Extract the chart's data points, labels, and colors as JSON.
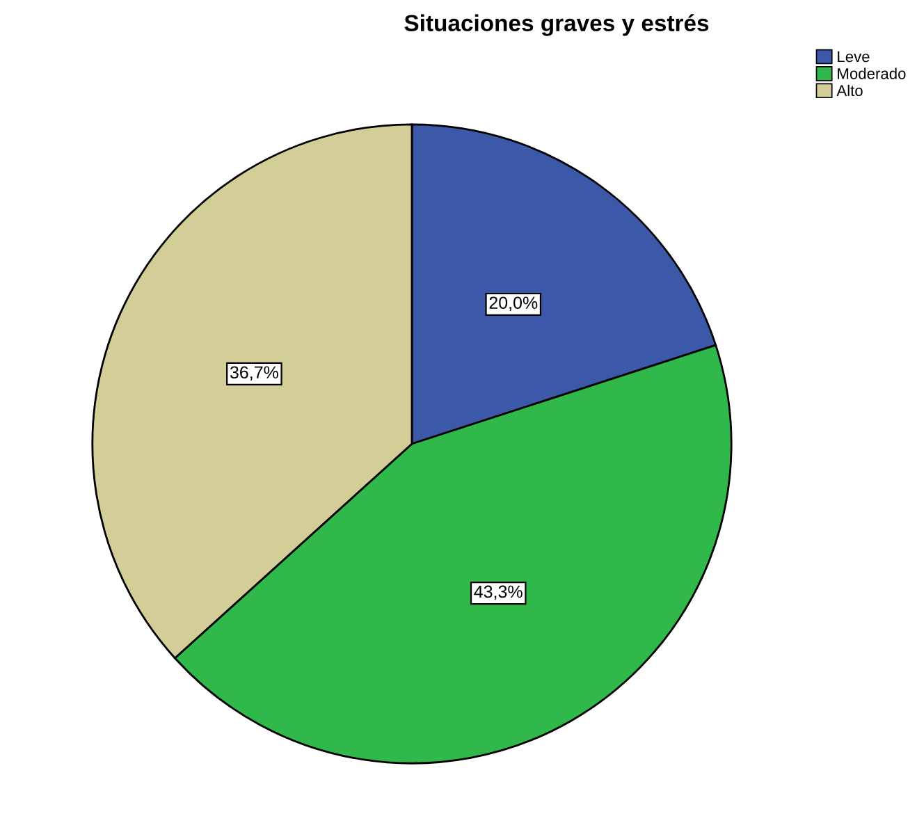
{
  "chart_data": {
    "type": "pie",
    "title": "Situaciones graves y estrés",
    "categories": [
      "Leve",
      "Moderado",
      "Alto"
    ],
    "values": [
      20.0,
      43.3,
      36.7
    ],
    "colors": [
      "#3c58a8",
      "#30b84a",
      "#d3cd98"
    ],
    "value_labels": [
      "20,0%",
      "43,3%",
      "36,7%"
    ],
    "legend": "top right"
  }
}
